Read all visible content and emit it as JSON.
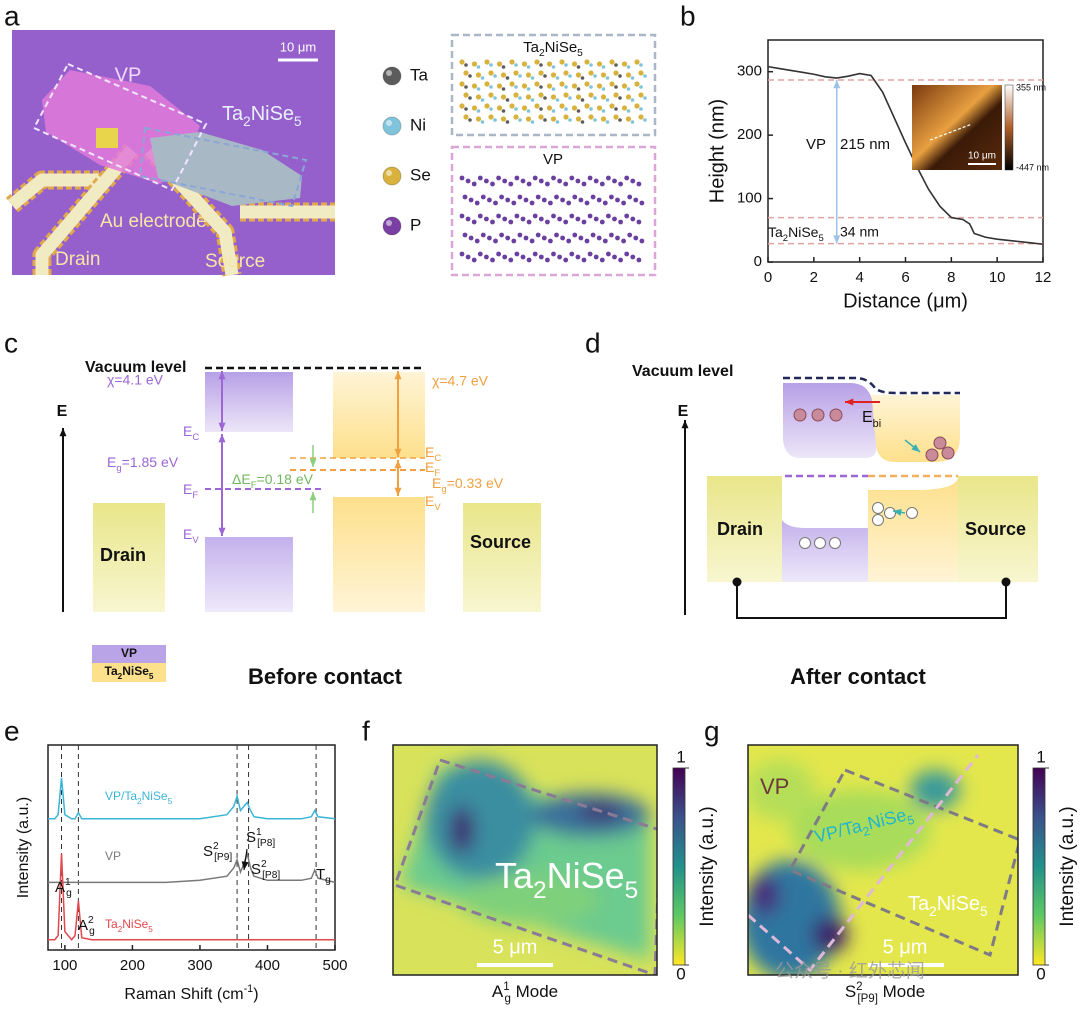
{
  "panel_labels": {
    "a": "a",
    "b": "b",
    "c": "c",
    "d": "d",
    "e": "e",
    "f": "f",
    "g": "g"
  },
  "panel_a": {
    "scale_bar": "10 μm",
    "vp": "VP",
    "ta2nise5": [
      "Ta",
      {
        "sub": "2"
      },
      "NiSe",
      {
        "sub": "5"
      }
    ],
    "au_electrode": "Au electrode",
    "drain": "Drain",
    "source": "Source",
    "legend": [
      {
        "label": "Ta",
        "color": "#5c5c5c"
      },
      {
        "label": "Ni",
        "color": "#7fc4da"
      },
      {
        "label": "Se",
        "color": "#d8b23c"
      },
      {
        "label": "P",
        "color": "#7a3fa2"
      }
    ],
    "structure_top": [
      "Ta",
      {
        "sub": "2"
      },
      "NiSe",
      {
        "sub": "5"
      }
    ],
    "structure_bottom": "VP"
  },
  "chart_data": [
    {
      "type": "line",
      "xlabel": "Distance (μm)",
      "ylabel": "Height (nm)",
      "x": [
        0,
        0.5,
        1,
        1.5,
        2,
        2.5,
        3,
        3.5,
        4,
        4.5,
        5,
        5.5,
        6,
        6.5,
        7,
        7.5,
        8,
        8.5,
        8.8,
        9,
        9.5,
        10,
        10.5,
        11,
        11.5,
        12
      ],
      "series": [
        {
          "color": "#333333",
          "values": [
            308,
            305,
            302,
            299,
            296,
            292,
            290,
            293,
            297,
            294,
            268,
            228,
            188,
            150,
            115,
            88,
            70,
            67,
            60,
            45,
            39,
            36,
            34,
            32,
            30,
            28
          ]
        }
      ],
      "xlim": [
        0,
        12
      ],
      "xticks": [
        0,
        2,
        4,
        6,
        8,
        10,
        12
      ],
      "ylim": [
        0,
        350
      ],
      "yticks": [
        0,
        100,
        200,
        300
      ],
      "hlines": [
        287,
        70,
        29
      ],
      "hline_color": "#e3a3a3",
      "annotations": {
        "vp": "VP",
        "vp_height": "215 nm",
        "tns": [
          "Ta",
          {
            "sub": "2"
          },
          "NiSe",
          {
            "sub": "5"
          }
        ],
        "tns_height": "34 nm"
      },
      "inset": {
        "scale_bar": "10 μm",
        "cbar_max": "355 nm",
        "cbar_min": "-447 nm"
      }
    },
    {
      "type": "line",
      "xlabel": [
        "Raman Shift (cm",
        {
          "sup": "-1"
        },
        ")"
      ],
      "ylabel": "Intensity (a.u.)",
      "x": [
        75,
        85,
        90,
        95,
        100,
        110,
        115,
        120,
        125,
        140,
        200,
        250,
        300,
        340,
        350,
        355,
        360,
        365,
        370,
        375,
        380,
        400,
        450,
        465,
        470,
        475,
        500
      ],
      "series": [
        {
          "name": [
            "VP/Ta",
            {
              "sub": "2"
            },
            "NiSe",
            {
              "sub": "5"
            }
          ],
          "color": "#3bb5d6",
          "values": [
            64,
            64,
            66,
            84,
            66,
            64,
            64,
            67,
            64,
            64,
            64,
            64,
            64,
            66,
            70,
            75,
            68,
            70,
            72,
            68,
            65,
            64,
            64,
            65,
            68,
            65,
            64
          ]
        },
        {
          "name": "VP",
          "color": "#7a7a7a",
          "values": [
            33,
            33,
            33,
            33,
            33,
            33,
            33,
            33,
            33,
            33,
            33,
            33,
            34,
            36,
            40,
            44,
            38,
            42,
            47,
            40,
            36,
            34,
            34,
            35,
            39,
            35,
            33
          ]
        },
        {
          "name": [
            "Ta",
            {
              "sub": "2"
            },
            "NiSe",
            {
              "sub": "5"
            }
          ],
          "color": "#e2474c",
          "values": [
            5,
            5,
            7,
            47,
            9,
            5,
            7,
            24,
            6,
            5,
            5,
            5,
            5,
            5,
            5,
            5,
            5,
            5,
            5,
            5,
            5,
            5,
            5,
            5,
            5,
            5,
            5
          ]
        }
      ],
      "xlim": [
        75,
        500
      ],
      "xticks": [
        100,
        200,
        300,
        400,
        500
      ],
      "ylim": [
        0,
        100
      ],
      "vlines": [
        95,
        120,
        355,
        372,
        472
      ],
      "peak_labels": [
        [
          "A",
          {
            "sup": "1"
          },
          {
            "sub": "g"
          }
        ],
        [
          "A",
          {
            "sup": "2"
          },
          {
            "sub": "g"
          }
        ],
        [
          "S",
          {
            "sup": "2"
          },
          {
            "sub": "[P9]"
          }
        ],
        [
          "S",
          {
            "sup": "1"
          },
          {
            "sub": "[P8]"
          }
        ],
        [
          "S",
          {
            "sup": "2"
          },
          {
            "sub": "[P8]"
          }
        ],
        [
          "T",
          {
            "sub": "g"
          }
        ]
      ]
    }
  ],
  "panel_c": {
    "vacuum_level": "Vacuum level",
    "chi_vp": "χ=4.1 eV",
    "ec_vp": [
      "E",
      {
        "sub": "C"
      }
    ],
    "eg_vp": [
      "E",
      {
        "sub": "g"
      },
      "=1.85 eV"
    ],
    "ef_vp": [
      "E",
      {
        "sub": "F"
      }
    ],
    "ev_vp": [
      "E",
      {
        "sub": "V"
      }
    ],
    "delta_ef": [
      "ΔE",
      {
        "sub": "F"
      },
      "=0.18 eV"
    ],
    "chi_tns": "χ=4.7 eV",
    "ec_tns": [
      "E",
      {
        "sub": "C"
      }
    ],
    "ef_tns": [
      "E",
      {
        "sub": "F"
      }
    ],
    "eg_tns": [
      "E",
      {
        "sub": "g"
      },
      "=0.33 eV"
    ],
    "ev_tns": [
      "E",
      {
        "sub": "V"
      }
    ],
    "energy_axis": "E",
    "drain": "Drain",
    "source": "Source",
    "legend_vp": "VP",
    "legend_tns": [
      "Ta",
      {
        "sub": "2"
      },
      "NiSe",
      {
        "sub": "5"
      }
    ],
    "caption": "Before contact"
  },
  "panel_d": {
    "vacuum_level": "Vacuum level",
    "ebi": [
      "E",
      {
        "sub": "bi"
      }
    ],
    "energy_axis": "E",
    "drain": "Drain",
    "source": "Source",
    "caption": "After contact"
  },
  "panel_f": {
    "material": [
      "Ta",
      {
        "sub": "2"
      },
      "NiSe",
      {
        "sub": "5"
      }
    ],
    "scale_bar": "5 μm",
    "mode": [
      "A",
      {
        "sup": "1"
      },
      {
        "sub": "g"
      },
      " Mode"
    ],
    "colorbar": {
      "ticks": [
        0,
        1
      ],
      "label": "Intensity (a.u.)"
    }
  },
  "panel_g": {
    "vp": "VP",
    "interface": [
      "VP/Ta",
      {
        "sub": "2"
      },
      "NiSe",
      {
        "sub": "5"
      }
    ],
    "material": [
      "Ta",
      {
        "sub": "2"
      },
      "NiSe",
      {
        "sub": "5"
      }
    ],
    "scale_bar": "5 μm",
    "mode": [
      "S",
      {
        "sup": "2"
      },
      {
        "sub": "[P9]"
      },
      " Mode"
    ],
    "colorbar": {
      "ticks": [
        0,
        1
      ],
      "label": "Intensity (a.u.)"
    }
  },
  "watermark": "公众号 · 红外芯闻"
}
